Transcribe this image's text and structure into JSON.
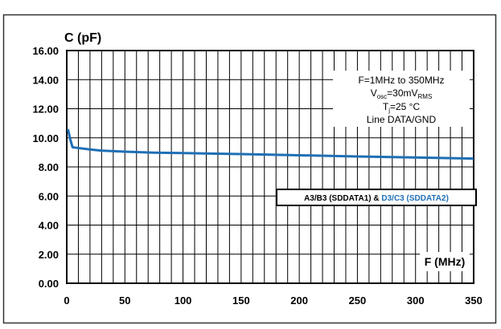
{
  "chart_data": {
    "type": "line",
    "ylabel": "C (pF)",
    "xlabel": "F (MHz)",
    "xlim": [
      0,
      350
    ],
    "ylim": [
      0,
      16
    ],
    "x_ticks": [
      0,
      50,
      100,
      150,
      200,
      250,
      300,
      350
    ],
    "y_ticks": [
      "0.00",
      "2.00",
      "4.00",
      "6.00",
      "8.00",
      "10.00",
      "12.00",
      "14.00",
      "16.00"
    ],
    "grid": true,
    "annotation": {
      "line1": "F=1MHz to 350MHz",
      "line2_main": "V",
      "line2_sub": "osc",
      "line2_mid": "=30mV",
      "line2_sub2": "RMS",
      "line3_main": "T",
      "line3_sub": "j",
      "line3_rest": "=25 °C",
      "line4": "Line DATA/GND"
    },
    "legend": {
      "part1": "A3/B3 (SDDATA1) & ",
      "part2": "D3/C3 (SDDATA2)",
      "placement": "right"
    },
    "series": [
      {
        "color": "#1f6fb5",
        "x": [
          1,
          3,
          5,
          10,
          20,
          30,
          50,
          75,
          100,
          150,
          200,
          250,
          300,
          350
        ],
        "y": [
          10.6,
          9.9,
          9.35,
          9.3,
          9.2,
          9.12,
          9.05,
          8.98,
          8.95,
          8.88,
          8.8,
          8.72,
          8.65,
          8.57
        ]
      }
    ]
  }
}
